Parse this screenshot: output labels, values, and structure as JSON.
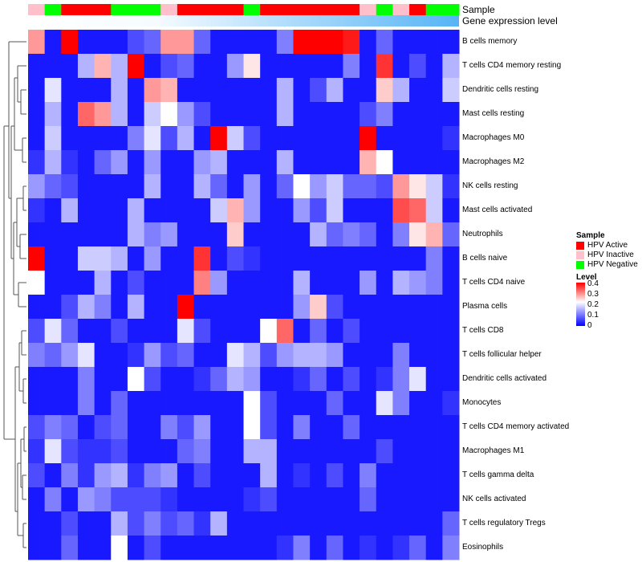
{
  "chart_data": {
    "type": "heatmap",
    "column_annotations": [
      {
        "name": "Sample",
        "values": [
          "HPV Inactive",
          "HPV Negative",
          "HPV Active",
          "HPV Active",
          "HPV Active",
          "HPV Negative",
          "HPV Negative",
          "HPV Negative",
          "HPV Inactive",
          "HPV Active",
          "HPV Active",
          "HPV Active",
          "HPV Active",
          "HPV Negative",
          "HPV Active",
          "HPV Active",
          "HPV Active",
          "HPV Active",
          "HPV Active",
          "HPV Active",
          "HPV Inactive",
          "HPV Negative",
          "HPV Inactive",
          "HPV Active",
          "HPV Negative",
          "HPV Negative"
        ]
      },
      {
        "name": "Gene expression level"
      }
    ],
    "rows": [
      "B cells memory",
      "T cells CD4 memory resting",
      "Dendritic cells resting",
      "Mast cells resting",
      "Macrophages M0",
      "Macrophages M2",
      "NK cells resting",
      "Mast cells activated",
      "Neutrophils",
      "B cells naive",
      "T cells CD4 naive",
      "Plasma cells",
      "T cells CD8",
      "T cells follicular helper",
      "Dendritic cells activated",
      "Monocytes",
      "T cells CD4 memory activated",
      "Macrophages M1",
      "T cells gamma delta",
      "NK cells activated",
      "T cells regulatory  Tregs",
      "Eosinophils"
    ],
    "values": [
      [
        0.28,
        0.02,
        0.4,
        0.02,
        0.02,
        0.02,
        0.06,
        0.08,
        0.28,
        0.28,
        0.08,
        0.02,
        0.02,
        0.02,
        0.02,
        0.1,
        0.4,
        0.4,
        0.4,
        0.38,
        0.02,
        0.08,
        0.02,
        0.02,
        0.02,
        0.02
      ],
      [
        0.02,
        0.02,
        0.02,
        0.14,
        0.26,
        0.14,
        0.4,
        0.02,
        0.06,
        0.08,
        0.02,
        0.02,
        0.12,
        0.22,
        0.02,
        0.02,
        0.02,
        0.02,
        0.02,
        0.1,
        0.02,
        0.36,
        0.02,
        0.06,
        0.02,
        0.14
      ],
      [
        0.02,
        0.18,
        0.02,
        0.02,
        0.02,
        0.14,
        0.02,
        0.28,
        0.26,
        0.02,
        0.02,
        0.02,
        0.02,
        0.02,
        0.02,
        0.14,
        0.02,
        0.06,
        0.14,
        0.02,
        0.02,
        0.24,
        0.14,
        0.02,
        0.02,
        0.16
      ],
      [
        0.02,
        0.14,
        0.02,
        0.32,
        0.28,
        0.14,
        0.02,
        0.16,
        0.2,
        0.12,
        0.06,
        0.02,
        0.02,
        0.02,
        0.02,
        0.14,
        0.02,
        0.02,
        0.02,
        0.02,
        0.06,
        0.1,
        0.02,
        0.02,
        0.02,
        0.02
      ],
      [
        0.02,
        0.16,
        0.02,
        0.02,
        0.02,
        0.02,
        0.1,
        0.18,
        0.06,
        0.14,
        0.02,
        0.4,
        0.16,
        0.06,
        0.02,
        0.02,
        0.02,
        0.02,
        0.02,
        0.02,
        0.4,
        0.02,
        0.02,
        0.02,
        0.02,
        0.04
      ],
      [
        0.04,
        0.14,
        0.04,
        0.02,
        0.08,
        0.12,
        0.02,
        0.12,
        0.02,
        0.02,
        0.12,
        0.14,
        0.02,
        0.02,
        0.02,
        0.14,
        0.02,
        0.02,
        0.02,
        0.02,
        0.26,
        0.2,
        0.02,
        0.02,
        0.02,
        0.02
      ],
      [
        0.12,
        0.08,
        0.06,
        0.02,
        0.02,
        0.02,
        0.02,
        0.14,
        0.02,
        0.02,
        0.14,
        0.08,
        0.02,
        0.12,
        0.02,
        0.08,
        0.2,
        0.12,
        0.16,
        0.08,
        0.08,
        0.06,
        0.28,
        0.22,
        0.16,
        0.04
      ],
      [
        0.04,
        0.02,
        0.14,
        0.02,
        0.02,
        0.02,
        0.14,
        0.02,
        0.02,
        0.02,
        0.02,
        0.16,
        0.26,
        0.12,
        0.02,
        0.02,
        0.12,
        0.06,
        0.16,
        0.02,
        0.02,
        0.02,
        0.34,
        0.32,
        0.16,
        0.02
      ],
      [
        0.02,
        0.02,
        0.02,
        0.02,
        0.02,
        0.02,
        0.14,
        0.1,
        0.12,
        0.02,
        0.02,
        0.02,
        0.24,
        0.02,
        0.02,
        0.02,
        0.02,
        0.14,
        0.08,
        0.1,
        0.08,
        0.02,
        0.1,
        0.22,
        0.26,
        0.08
      ],
      [
        0.4,
        0.02,
        0.02,
        0.16,
        0.16,
        0.14,
        0.02,
        0.12,
        0.02,
        0.02,
        0.36,
        0.02,
        0.06,
        0.04,
        0.02,
        0.02,
        0.02,
        0.02,
        0.02,
        0.02,
        0.02,
        0.02,
        0.02,
        0.02,
        0.1,
        0.02
      ],
      [
        0.2,
        0.02,
        0.02,
        0.02,
        0.14,
        0.02,
        0.06,
        0.02,
        0.02,
        0.02,
        0.3,
        0.12,
        0.02,
        0.02,
        0.02,
        0.02,
        0.14,
        0.02,
        0.02,
        0.02,
        0.12,
        0.02,
        0.14,
        0.12,
        0.1,
        0.02
      ],
      [
        0.02,
        0.02,
        0.06,
        0.14,
        0.1,
        0.02,
        0.14,
        0.02,
        0.02,
        0.4,
        0.02,
        0.02,
        0.02,
        0.02,
        0.02,
        0.02,
        0.12,
        0.24,
        0.06,
        0.02,
        0.02,
        0.02,
        0.02,
        0.02,
        0.02,
        0.02
      ],
      [
        0.06,
        0.18,
        0.08,
        0.02,
        0.02,
        0.06,
        0.02,
        0.02,
        0.02,
        0.18,
        0.06,
        0.02,
        0.02,
        0.02,
        0.2,
        0.32,
        0.02,
        0.08,
        0.02,
        0.06,
        0.02,
        0.02,
        0.02,
        0.02,
        0.02,
        0.02
      ],
      [
        0.1,
        0.08,
        0.12,
        0.18,
        0.02,
        0.02,
        0.04,
        0.12,
        0.06,
        0.08,
        0.02,
        0.02,
        0.18,
        0.14,
        0.06,
        0.12,
        0.14,
        0.14,
        0.12,
        0.02,
        0.02,
        0.02,
        0.1,
        0.02,
        0.02,
        0.02
      ],
      [
        0.02,
        0.02,
        0.02,
        0.1,
        0.02,
        0.02,
        0.2,
        0.06,
        0.02,
        0.02,
        0.04,
        0.08,
        0.14,
        0.12,
        0.02,
        0.02,
        0.04,
        0.08,
        0.02,
        0.06,
        0.02,
        0.04,
        0.1,
        0.18,
        0.02,
        0.02
      ],
      [
        0.02,
        0.02,
        0.02,
        0.1,
        0.02,
        0.08,
        0.02,
        0.02,
        0.02,
        0.02,
        0.02,
        0.02,
        0.02,
        0.2,
        0.06,
        0.02,
        0.02,
        0.02,
        0.08,
        0.02,
        0.02,
        0.18,
        0.1,
        0.02,
        0.02,
        0.04
      ],
      [
        0.06,
        0.1,
        0.08,
        0.02,
        0.06,
        0.08,
        0.02,
        0.02,
        0.1,
        0.06,
        0.12,
        0.02,
        0.02,
        0.2,
        0.06,
        0.02,
        0.1,
        0.02,
        0.02,
        0.08,
        0.02,
        0.02,
        0.02,
        0.02,
        0.02,
        0.02
      ],
      [
        0.04,
        0.18,
        0.06,
        0.04,
        0.04,
        0.06,
        0.02,
        0.02,
        0.02,
        0.08,
        0.1,
        0.02,
        0.02,
        0.14,
        0.14,
        0.02,
        0.02,
        0.02,
        0.02,
        0.02,
        0.02,
        0.06,
        0.02,
        0.02,
        0.02,
        0.02
      ],
      [
        0.06,
        0.02,
        0.1,
        0.04,
        0.12,
        0.14,
        0.04,
        0.1,
        0.12,
        0.02,
        0.06,
        0.02,
        0.02,
        0.02,
        0.14,
        0.02,
        0.04,
        0.02,
        0.06,
        0.02,
        0.1,
        0.02,
        0.02,
        0.02,
        0.02,
        0.02
      ],
      [
        0.02,
        0.1,
        0.02,
        0.12,
        0.1,
        0.06,
        0.06,
        0.06,
        0.04,
        0.02,
        0.02,
        0.02,
        0.02,
        0.04,
        0.06,
        0.02,
        0.02,
        0.02,
        0.02,
        0.02,
        0.08,
        0.02,
        0.02,
        0.02,
        0.02,
        0.02
      ],
      [
        0.02,
        0.02,
        0.06,
        0.02,
        0.02,
        0.14,
        0.06,
        0.1,
        0.06,
        0.08,
        0.04,
        0.14,
        0.02,
        0.02,
        0.02,
        0.02,
        0.02,
        0.02,
        0.02,
        0.02,
        0.02,
        0.02,
        0.02,
        0.02,
        0.02,
        0.08
      ],
      [
        0.02,
        0.02,
        0.08,
        0.02,
        0.02,
        0.2,
        0.02,
        0.06,
        0.02,
        0.02,
        0.02,
        0.02,
        0.02,
        0.02,
        0.02,
        0.04,
        0.1,
        0.02,
        0.08,
        0.02,
        0.04,
        0.02,
        0.04,
        0.08,
        0.02,
        0.1
      ]
    ],
    "color_scale": {
      "min": 0,
      "max": 0.4,
      "low": "#0000ff",
      "mid": "#ffffff",
      "high": "#ff0000"
    },
    "legends": {
      "sample": {
        "title": "Sample",
        "items": [
          {
            "label": "HPV Active",
            "color": "#ff0000"
          },
          {
            "label": "HPV Inactive",
            "color": "#ffc0cb"
          },
          {
            "label": "HPV Negative",
            "color": "#00ff00"
          }
        ]
      },
      "level": {
        "title": "Level",
        "ticks": [
          "0.4",
          "0.3",
          "0.2",
          "0.1",
          "0"
        ]
      }
    }
  }
}
